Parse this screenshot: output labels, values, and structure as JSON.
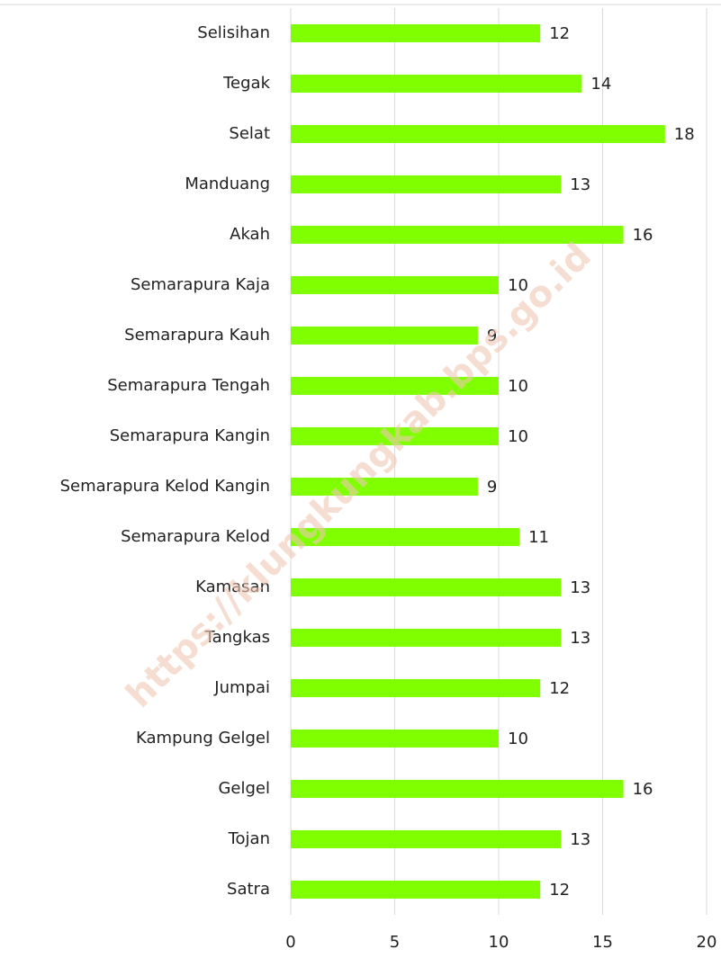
{
  "chart_data": {
    "type": "bar",
    "orientation": "horizontal",
    "watermark": "https://klungkungkab.bps.go.id",
    "categories": [
      "Selisihan",
      "Tegak",
      "Selat",
      "Manduang",
      "Akah",
      "Semarapura Kaja",
      "Semarapura Kauh",
      "Semarapura Tengah",
      "Semarapura Kangin",
      "Semarapura Kelod Kangin",
      "Semarapura Kelod",
      "Kamasan",
      "Tangkas",
      "Jumpai",
      "Kampung Gelgel",
      "Gelgel",
      "Tojan",
      "Satra"
    ],
    "values": [
      12,
      14,
      18,
      13,
      16,
      10,
      9,
      10,
      10,
      9,
      11,
      13,
      13,
      12,
      10,
      16,
      13,
      12
    ],
    "color": "#80ff00",
    "xlim": [
      0,
      20
    ],
    "xticks": [
      0,
      5,
      10,
      15,
      20
    ],
    "grid": true
  }
}
